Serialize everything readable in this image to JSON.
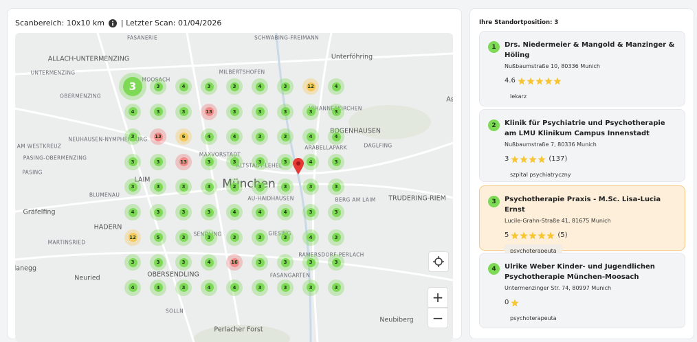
{
  "header": {
    "scan_area": "Scanbereich: 10x10 km",
    "last_scan": "| Letzter Scan: 01/04/2026"
  },
  "map": {
    "labels": [
      "FASANERIE",
      "SCHWABING-FREIMANN",
      "Unterföhring",
      "ALLACH-UNTERMENZING",
      "MOOSACH",
      "MILBERTSHOFEN",
      "UNTERMENZING",
      "OBERMENZING",
      "JOHANNESKIRCHEN",
      "BOGENHAUSEN",
      "AM WESTKREUZ",
      "NEUHAUSEN-NYMPHENBURG",
      "MAXVORSTADT",
      "ARABELLAPARK",
      "DAGLFING",
      "PASING-OBERMENZING",
      "ALTSTADT-LEHEL",
      "PASING",
      "LAIM",
      "München",
      "BLUMENAU",
      "AU-HAIDHAUSEN",
      "BERG AM LAIM",
      "TRUDERING-RIEM",
      "Gräfelfing",
      "HADERN",
      "MARTINSRIED",
      "SENDLING",
      "GIESING",
      "Planegg",
      "RAMERSDORF-PERLACH",
      "OBERSENDLING",
      "Neuried",
      "FASANGARTEN",
      "SOLLN",
      "Neubiberg",
      "Perlacher Forst",
      "As"
    ],
    "zoom_in": "+",
    "zoom_out": "−",
    "grid": [
      [
        3,
        3,
        4,
        3,
        3,
        4,
        3,
        12,
        4
      ],
      [
        4,
        3,
        3,
        13,
        3,
        3,
        3,
        3,
        3
      ],
      [
        3,
        13,
        6,
        4,
        4,
        3,
        3,
        4,
        4
      ],
      [
        3,
        3,
        13,
        3,
        3,
        3,
        3,
        4,
        3
      ],
      [
        3,
        3,
        3,
        3,
        2,
        3,
        3,
        3,
        3
      ],
      [
        4,
        3,
        3,
        3,
        4,
        4,
        4,
        3,
        3
      ],
      [
        12,
        5,
        3,
        3,
        3,
        3,
        3,
        4,
        3
      ],
      [
        3,
        3,
        3,
        4,
        16,
        3,
        3,
        3,
        3
      ],
      [
        4,
        4,
        3,
        4,
        4,
        3,
        3,
        3,
        3
      ]
    ]
  },
  "results": {
    "title": "Ihre Standortposition: 3",
    "items": [
      {
        "rank": 1,
        "name": "Drs. Niedermeier & Mangold & Manzinger & Höling",
        "address": "Nußbaumstraße 10, 80336 Munich",
        "rating": 4.6,
        "stars": 5,
        "category": "lekarz"
      },
      {
        "rank": 2,
        "name": "Klinik für Psychiatrie und Psychotherapie am LMU Klinikum Campus Innenstadt",
        "address": "Nußbaumstraße 7, 80336 Munich",
        "rating": 3,
        "stars": 4,
        "reviews": "(137)",
        "category": "szpital psychiatryczny"
      },
      {
        "rank": 3,
        "name": "Psychotherapie Praxis - M.Sc. Lisa-Lucia Ernst",
        "address": "Lucile-Grahn-Straße 41, 81675 Munich",
        "rating": 5,
        "stars": 5,
        "reviews": "(5)",
        "category": "psychoterapeuta"
      },
      {
        "rank": 4,
        "name": "Ulrike Weber Kinder- und Jugendlichen Psychotherapie München-Moosach",
        "address": "Untermenzinger Str. 74, 80997 Munich",
        "rating": 0,
        "stars": 1,
        "category": "psychoterapeuta"
      }
    ]
  }
}
